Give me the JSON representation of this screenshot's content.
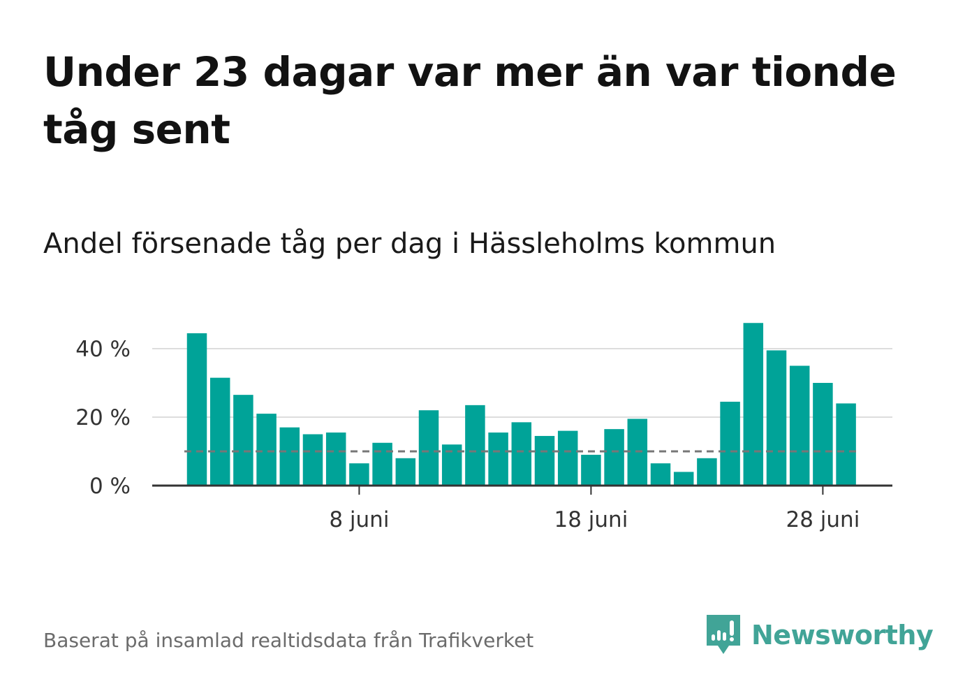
{
  "title": "Under 23 dagar var mer än var tionde tåg sent",
  "subtitle": "Andel försenade tåg per dag i Hässleholms kommun",
  "footer": "Baserat på insamlad realtidsdata från Trafikverket",
  "brand": {
    "name": "Newsworthy",
    "icon": "newsworthy-logo-icon",
    "color": "#41a497"
  },
  "colors": {
    "bar": "#00a398",
    "grid": "#dddddd",
    "axis": "#333333",
    "reference_line": "#777777"
  },
  "chart_data": {
    "type": "bar",
    "x_unit": "day of June",
    "x": [
      1,
      2,
      3,
      4,
      5,
      6,
      7,
      8,
      9,
      10,
      11,
      12,
      13,
      14,
      15,
      16,
      17,
      18,
      19,
      20,
      21,
      22,
      23,
      24,
      25,
      26,
      27,
      28,
      29
    ],
    "values": [
      44.5,
      31.5,
      26.5,
      21,
      17,
      15,
      15.5,
      6.5,
      12.5,
      8,
      22,
      12,
      23.5,
      15.5,
      18.5,
      14.5,
      16,
      9,
      16.5,
      19.5,
      6.5,
      4,
      8,
      24.5,
      47.5,
      39.5,
      35,
      30,
      24
    ],
    "reference_line": {
      "value": 10,
      "style": "dashed"
    },
    "x_ticks": [
      {
        "x": 8,
        "label": "8 juni"
      },
      {
        "x": 18,
        "label": "18 juni"
      },
      {
        "x": 28,
        "label": "28 juni"
      }
    ],
    "y_ticks": [
      {
        "value": 0,
        "label": "0 %"
      },
      {
        "value": 20,
        "label": "20 %"
      },
      {
        "value": 40,
        "label": "40 %"
      }
    ],
    "ylim": [
      0,
      50
    ],
    "grid": true
  }
}
